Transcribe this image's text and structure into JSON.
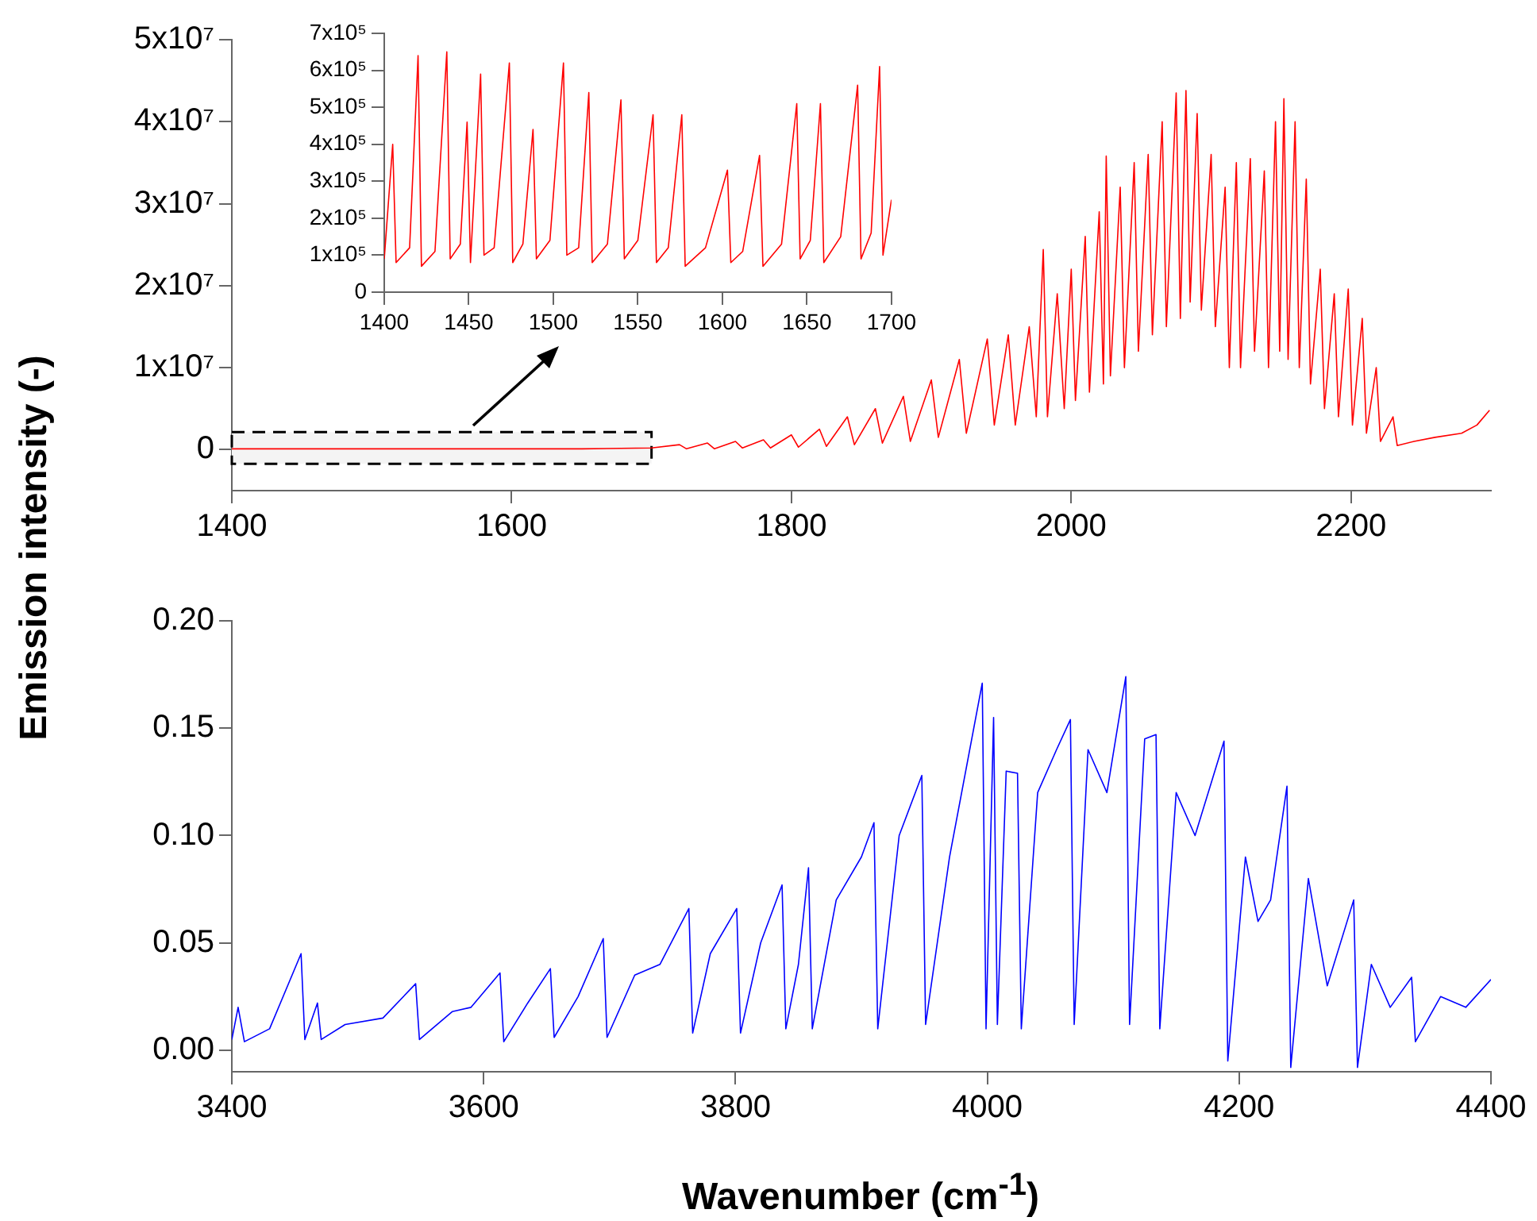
{
  "chart_data": [
    {
      "type": "line",
      "ylabel": "Emission intensity (-)",
      "xlim": [
        1400,
        2300
      ],
      "ylim": [
        -5000000,
        50000000
      ],
      "xticks": [
        1400,
        1600,
        1800,
        2000,
        2200
      ],
      "yticks": [
        0,
        {
          "value": 10000000,
          "label": "1x10⁷"
        },
        {
          "value": 20000000,
          "label": "2x10⁷"
        },
        {
          "value": 30000000,
          "label": "3x10⁷"
        },
        {
          "value": 40000000,
          "label": "4x10⁷"
        },
        {
          "value": 50000000,
          "label": "5x10⁷"
        }
      ],
      "marker": "none",
      "grid": false,
      "bands": [
        {
          "axis": "x",
          "from": 1400,
          "to": 1700,
          "color": "#f4f4f4"
        }
      ],
      "x": [
        1400,
        1450,
        1500,
        1550,
        1600,
        1650,
        1700,
        1720,
        1725,
        1740,
        1745,
        1760,
        1765,
        1780,
        1785,
        1800,
        1805,
        1820,
        1825,
        1840,
        1845,
        1860,
        1865,
        1880,
        1885,
        1900,
        1905,
        1920,
        1925,
        1940,
        1945,
        1955,
        1960,
        1970,
        1975,
        1980,
        1983,
        1990,
        1995,
        2000,
        2003,
        2010,
        2013,
        2020,
        2023,
        2025,
        2028,
        2035,
        2038,
        2045,
        2048,
        2055,
        2058,
        2065,
        2068,
        2075,
        2078,
        2082,
        2085,
        2090,
        2093,
        2100,
        2103,
        2110,
        2113,
        2118,
        2121,
        2128,
        2131,
        2138,
        2141,
        2146,
        2149,
        2152,
        2155,
        2160,
        2163,
        2168,
        2171,
        2178,
        2181,
        2188,
        2191,
        2198,
        2201,
        2208,
        2211,
        2218,
        2221,
        2230,
        2233,
        2245,
        2260,
        2279,
        2290,
        2299
      ],
      "series": [
        {
          "color": "#ff0000",
          "values": [
            100000,
            100000,
            100000,
            100000,
            100000,
            100000,
            200000,
            600000,
            100000,
            800000,
            100000,
            1000000,
            200000,
            1200000,
            200000,
            1800000,
            300000,
            2500000,
            400000,
            4000000,
            600000,
            5000000,
            800000,
            6500000,
            1000000,
            8500000,
            1500000,
            11000000,
            2000000,
            13500000,
            3000000,
            14000000,
            3000000,
            15000000,
            4000000,
            24400000,
            4000000,
            19000000,
            5000000,
            22000000,
            6000000,
            26000000,
            7000000,
            29000000,
            8000000,
            35800000,
            9000000,
            32000000,
            10000000,
            35000000,
            12000000,
            36000000,
            14000000,
            40000000,
            15000000,
            43500000,
            16000000,
            43800000,
            18000000,
            41000000,
            17000000,
            36000000,
            15000000,
            32000000,
            10000000,
            35000000,
            10000000,
            35500000,
            12000000,
            34000000,
            10000000,
            40000000,
            12000000,
            42800000,
            11000000,
            40000000,
            10000000,
            33000000,
            8000000,
            22000000,
            5000000,
            19000000,
            4000000,
            19600000,
            3000000,
            16000000,
            2000000,
            10000000,
            1000000,
            4000000,
            500000,
            1000000,
            1500000,
            2000000,
            3000000,
            4800000
          ]
        }
      ]
    },
    {
      "type": "line",
      "xlim": [
        1400,
        1700
      ],
      "ylim": [
        0,
        700000
      ],
      "xticks": [
        1400,
        1450,
        1500,
        1550,
        1600,
        1650,
        1700
      ],
      "yticks": [
        0,
        {
          "value": 100000,
          "label": "1x10⁵"
        },
        {
          "value": 200000,
          "label": "2x10⁵"
        },
        {
          "value": 300000,
          "label": "3x10⁵"
        },
        {
          "value": 400000,
          "label": "4x10⁵"
        },
        {
          "value": 500000,
          "label": "5x10⁵"
        },
        {
          "value": 600000,
          "label": "6x10⁵"
        },
        {
          "value": 700000,
          "label": "7x10⁵"
        }
      ],
      "marker": "none",
      "grid": false,
      "x": [
        1400,
        1405,
        1407,
        1415,
        1420,
        1422,
        1430,
        1437,
        1439,
        1445,
        1449,
        1451,
        1457,
        1459,
        1465,
        1474,
        1476,
        1482,
        1488,
        1490,
        1498,
        1506,
        1508,
        1515,
        1521,
        1523,
        1532,
        1540,
        1542,
        1550,
        1559,
        1561,
        1568,
        1576,
        1578,
        1590,
        1603,
        1605,
        1612,
        1622,
        1624,
        1635,
        1644,
        1646,
        1652,
        1658,
        1660,
        1670,
        1680,
        1682,
        1688,
        1693,
        1695,
        1700
      ],
      "series": [
        {
          "color": "#ff0000",
          "values": [
            90000,
            400000,
            80000,
            120000,
            640000,
            70000,
            110000,
            650000,
            90000,
            130000,
            460000,
            80000,
            590000,
            100000,
            120000,
            620000,
            80000,
            130000,
            440000,
            90000,
            140000,
            620000,
            100000,
            120000,
            540000,
            80000,
            130000,
            520000,
            90000,
            140000,
            480000,
            80000,
            120000,
            480000,
            70000,
            120000,
            330000,
            80000,
            110000,
            370000,
            70000,
            130000,
            510000,
            90000,
            140000,
            510000,
            80000,
            150000,
            560000,
            90000,
            160000,
            610000,
            100000,
            250000
          ]
        }
      ]
    },
    {
      "type": "line",
      "xlabel": "Wavenumber (cm$^{-1}$)",
      "xlim": [
        3400,
        4400
      ],
      "ylim": [
        -0.01,
        0.2
      ],
      "xticks": [
        3400,
        3600,
        3800,
        4000,
        4200,
        4400
      ],
      "yticks": [
        {
          "value": 0,
          "label": "0.00"
        },
        {
          "value": 0.05,
          "label": "0.05"
        },
        {
          "value": 0.1,
          "label": "0.10"
        },
        {
          "value": 0.15,
          "label": "0.15"
        },
        {
          "value": 0.2,
          "label": "0.20"
        }
      ],
      "marker": "none",
      "grid": false,
      "x": [
        3400,
        3405,
        3410,
        3430,
        3455,
        3458,
        3468,
        3471,
        3490,
        3520,
        3546,
        3549,
        3575,
        3590,
        3613,
        3616,
        3635,
        3653,
        3656,
        3675,
        3695,
        3698,
        3720,
        3740,
        3763,
        3766,
        3780,
        3801,
        3804,
        3820,
        3837,
        3840,
        3850,
        3858,
        3861,
        3880,
        3900,
        3910,
        3913,
        3930,
        3948,
        3951,
        3970,
        3996,
        3999,
        4005,
        4008,
        4015,
        4024,
        4027,
        4040,
        4055,
        4066,
        4069,
        4080,
        4095,
        4110,
        4113,
        4125,
        4134,
        4137,
        4150,
        4165,
        4188,
        4191,
        4205,
        4215,
        4225,
        4238,
        4241,
        4255,
        4270,
        4291,
        4294,
        4305,
        4320,
        4337,
        4340,
        4360,
        4380,
        4400
      ],
      "series": [
        {
          "color": "#0000ff",
          "values": [
            0.005,
            0.02,
            0.004,
            0.01,
            0.045,
            0.005,
            0.022,
            0.005,
            0.012,
            0.015,
            0.031,
            0.005,
            0.018,
            0.02,
            0.036,
            0.004,
            0.022,
            0.038,
            0.006,
            0.025,
            0.052,
            0.006,
            0.035,
            0.04,
            0.066,
            0.008,
            0.045,
            0.066,
            0.008,
            0.05,
            0.077,
            0.01,
            0.04,
            0.085,
            0.01,
            0.07,
            0.09,
            0.106,
            0.01,
            0.1,
            0.128,
            0.012,
            0.09,
            0.171,
            0.01,
            0.155,
            0.012,
            0.13,
            0.129,
            0.01,
            0.12,
            0.14,
            0.154,
            0.012,
            0.14,
            0.12,
            0.174,
            0.012,
            0.145,
            0.147,
            0.01,
            0.12,
            0.1,
            0.144,
            -0.005,
            0.09,
            0.06,
            0.07,
            0.123,
            -0.008,
            0.08,
            0.03,
            0.07,
            -0.008,
            0.04,
            0.02,
            0.034,
            0.004,
            0.025,
            0.02,
            0.033
          ]
        }
      ]
    }
  ]
}
